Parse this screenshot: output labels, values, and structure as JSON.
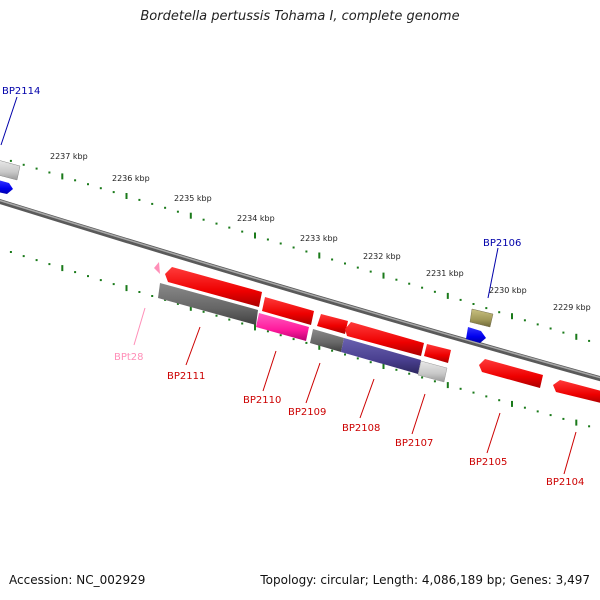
{
  "title": "Bordetella pertussis Tohama I, complete genome",
  "footer": {
    "accession": "Accession: NC_002929",
    "summary": "Topology: circular; Length: 4,086,189 bp; Genes: 3,497"
  },
  "scale_labels": [
    "2237 kbp",
    "2236 kbp",
    "2235 kbp",
    "2234 kbp",
    "2233 kbp",
    "2232 kbp",
    "2231 kbp",
    "2230 kbp",
    "2229 kbp"
  ],
  "colors": {
    "background": "#ffffff",
    "ruler_dots": "#1a7a1a",
    "backbone": "#808080",
    "cds": "#ff0000",
    "trna": "#ff8fb8",
    "gene_label": "#cc0000",
    "outer_label": "#0000aa",
    "hypothetical": "#6a6a6a",
    "magenta": "#ff1a9c",
    "navy": "#4a4090",
    "olive": "#a09858",
    "blue": "#0000ee"
  },
  "features": [
    {
      "label": "BP2114",
      "type": "outer",
      "color": "blue"
    },
    {
      "label": "BP2106",
      "type": "outer",
      "color": "olive"
    },
    {
      "label": "BPt28",
      "type": "trna",
      "color": "trna"
    },
    {
      "label": "BP2111",
      "type": "cds",
      "color": "cds"
    },
    {
      "label": "BP2110",
      "type": "cds",
      "color": "magenta"
    },
    {
      "label": "BP2109",
      "type": "cds",
      "color": "cds"
    },
    {
      "label": "BP2108",
      "type": "cds",
      "color": "navy"
    },
    {
      "label": "BP2107",
      "type": "cds",
      "color": "cds"
    },
    {
      "label": "BP2105",
      "type": "cds",
      "color": "cds"
    },
    {
      "label": "BP2104",
      "type": "cds",
      "color": "cds"
    }
  ]
}
